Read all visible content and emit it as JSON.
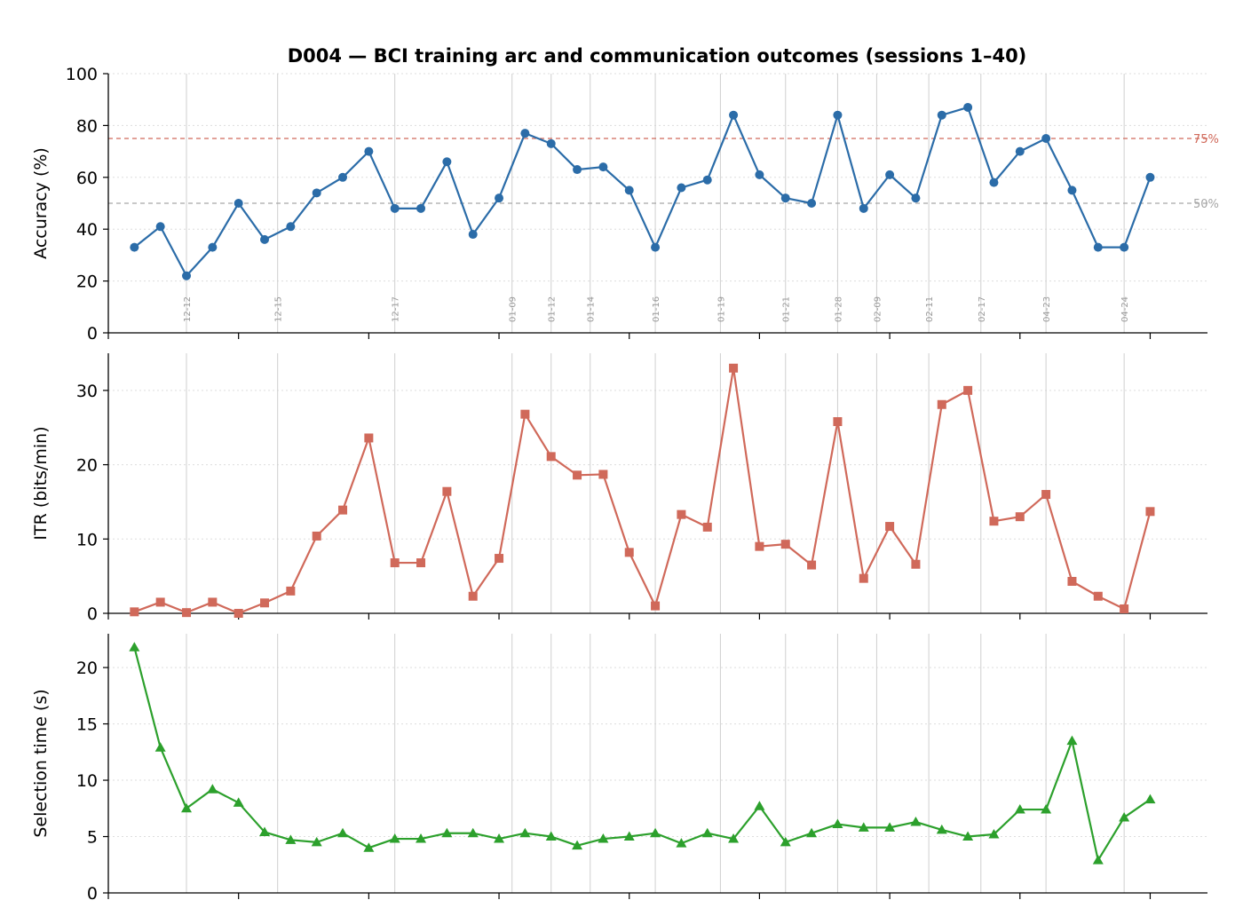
{
  "chart_data": {
    "type": "line",
    "title": "D004 — BCI training arc and communication outcomes (sessions 1–40)",
    "x": [
      1,
      2,
      3,
      4,
      5,
      6,
      7,
      8,
      9,
      10,
      11,
      12,
      13,
      14,
      15,
      16,
      17,
      18,
      19,
      20,
      21,
      22,
      23,
      24,
      25,
      26,
      27,
      28,
      29,
      30,
      31,
      32,
      33,
      34,
      35,
      36,
      37,
      38,
      39,
      40
    ],
    "xlim": [
      0,
      42.2
    ],
    "grid": "horizontal dotted, vertical session-date lines",
    "date_markers": [
      {
        "label": "12-12",
        "x": 3
      },
      {
        "label": "12-15",
        "x": 6.5
      },
      {
        "label": "12-17",
        "x": 11
      },
      {
        "label": "01-09",
        "x": 15.5
      },
      {
        "label": "01-12",
        "x": 17
      },
      {
        "label": "01-14",
        "x": 18.5
      },
      {
        "label": "01-16",
        "x": 21
      },
      {
        "label": "01-19",
        "x": 23.5
      },
      {
        "label": "01-21",
        "x": 26
      },
      {
        "label": "01-28",
        "x": 28
      },
      {
        "label": "02-09",
        "x": 29.5
      },
      {
        "label": "02-11",
        "x": 31.5
      },
      {
        "label": "02-17",
        "x": 33.5
      },
      {
        "label": "04-23",
        "x": 36
      },
      {
        "label": "04-24",
        "x": 39
      }
    ],
    "panels": [
      {
        "name": "accuracy",
        "ylabel": "Accuracy (%)",
        "ylim": [
          0,
          100
        ],
        "yticks": [
          0,
          20,
          40,
          60,
          80,
          100
        ],
        "color": "#2b6ca8",
        "marker": "circle",
        "values": [
          33,
          41,
          22,
          33,
          50,
          36,
          41,
          54,
          60,
          70,
          48,
          48,
          66,
          38,
          52,
          77,
          73,
          63,
          64,
          55,
          33,
          56,
          59,
          84,
          61,
          52,
          50,
          84,
          48,
          61,
          52,
          84,
          87,
          58,
          70,
          75,
          55,
          33,
          33,
          60
        ],
        "reference_lines": [
          {
            "value": 75,
            "label": "75%",
            "color": "#d0695a"
          },
          {
            "value": 50,
            "label": "50%",
            "color": "#a6a6a6"
          }
        ]
      },
      {
        "name": "itr",
        "ylabel": "ITR (bits/min)",
        "ylim": [
          0,
          35
        ],
        "yticks": [
          0,
          10,
          20,
          30
        ],
        "color": "#d0695a",
        "marker": "square",
        "values": [
          0.2,
          1.5,
          0.1,
          1.5,
          0.0,
          1.4,
          3.0,
          10.4,
          13.9,
          23.6,
          6.8,
          6.8,
          16.4,
          2.3,
          7.4,
          26.8,
          21.1,
          18.6,
          18.7,
          8.2,
          1.0,
          13.3,
          11.6,
          33.0,
          9.0,
          9.3,
          6.5,
          25.8,
          4.7,
          11.7,
          6.6,
          28.1,
          30.0,
          12.4,
          13.0,
          16.0,
          4.3,
          2.3,
          0.6,
          13.7
        ]
      },
      {
        "name": "selection_time",
        "ylabel": "Selection time (s)",
        "ylim": [
          0,
          23
        ],
        "yticks": [
          0,
          5,
          10,
          15,
          20
        ],
        "color": "#2ca02c",
        "marker": "triangle",
        "values": [
          21.8,
          12.9,
          7.5,
          9.2,
          8.0,
          5.4,
          4.7,
          4.5,
          5.3,
          4.0,
          4.8,
          4.8,
          5.3,
          5.3,
          4.8,
          5.3,
          5.0,
          4.2,
          4.8,
          5.0,
          5.3,
          4.4,
          5.3,
          4.8,
          7.7,
          4.5,
          5.3,
          6.1,
          5.8,
          5.8,
          6.3,
          5.6,
          5.0,
          5.2,
          7.4,
          7.4,
          13.5,
          2.9,
          6.7,
          8.3
        ]
      }
    ]
  }
}
